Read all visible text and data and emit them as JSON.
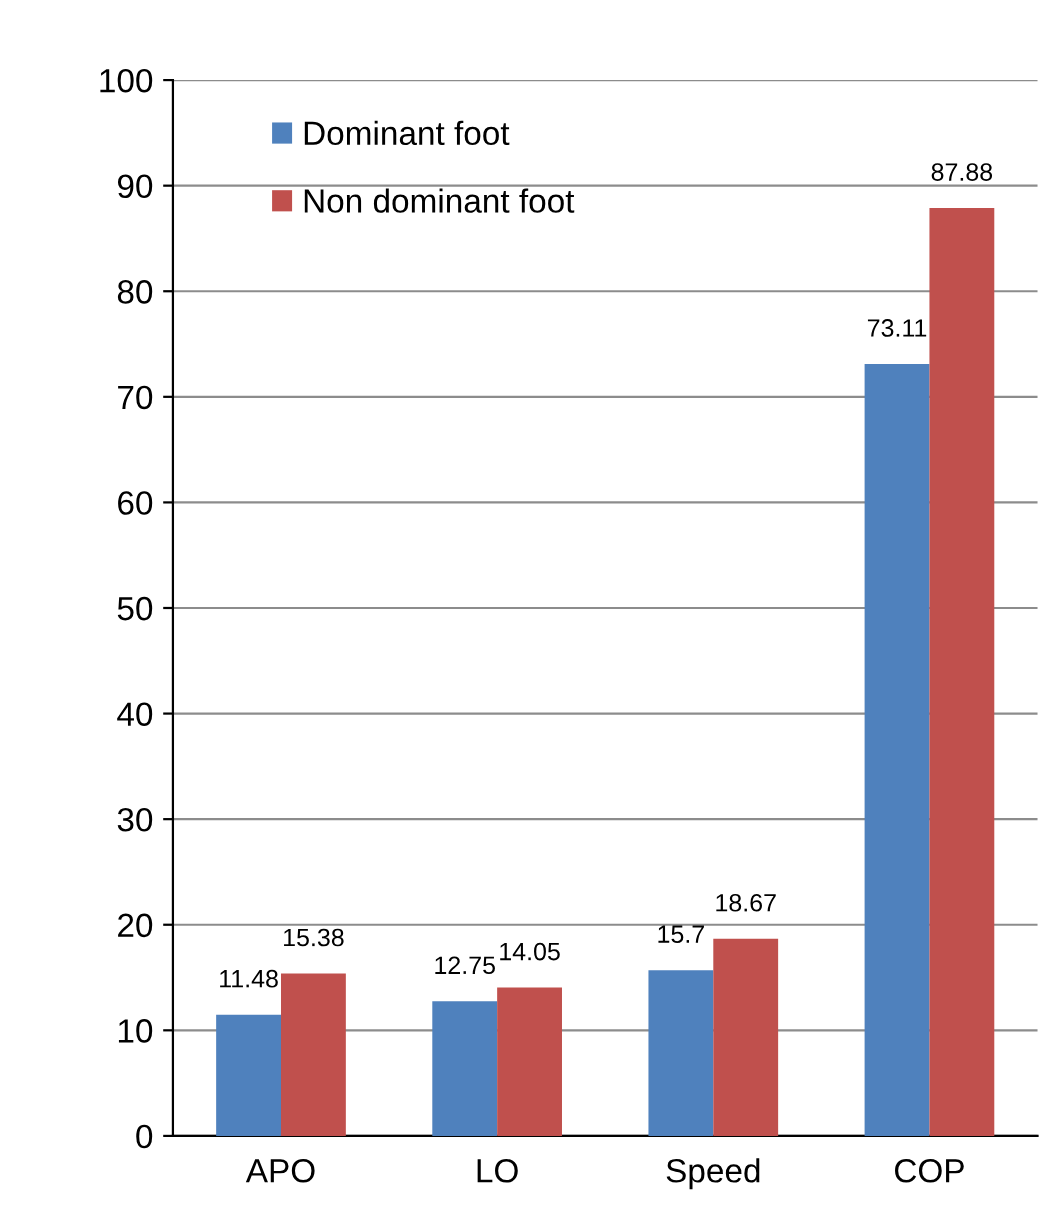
{
  "chart_data": {
    "type": "bar",
    "categories": [
      "APO",
      "LO",
      "Speed",
      "COP"
    ],
    "series": [
      {
        "name": "Dominant foot",
        "color": "#4f81bd",
        "values": [
          11.48,
          12.75,
          15.7,
          73.11
        ]
      },
      {
        "name": "Non dominant foot",
        "color": "#c0504d",
        "values": [
          15.38,
          14.05,
          18.67,
          87.88
        ]
      }
    ],
    "ylim": [
      0,
      100
    ],
    "yticks": [
      0,
      10,
      20,
      30,
      40,
      50,
      60,
      70,
      80,
      90,
      100
    ],
    "grid": "y",
    "legend": "top left",
    "data_labels": true
  }
}
